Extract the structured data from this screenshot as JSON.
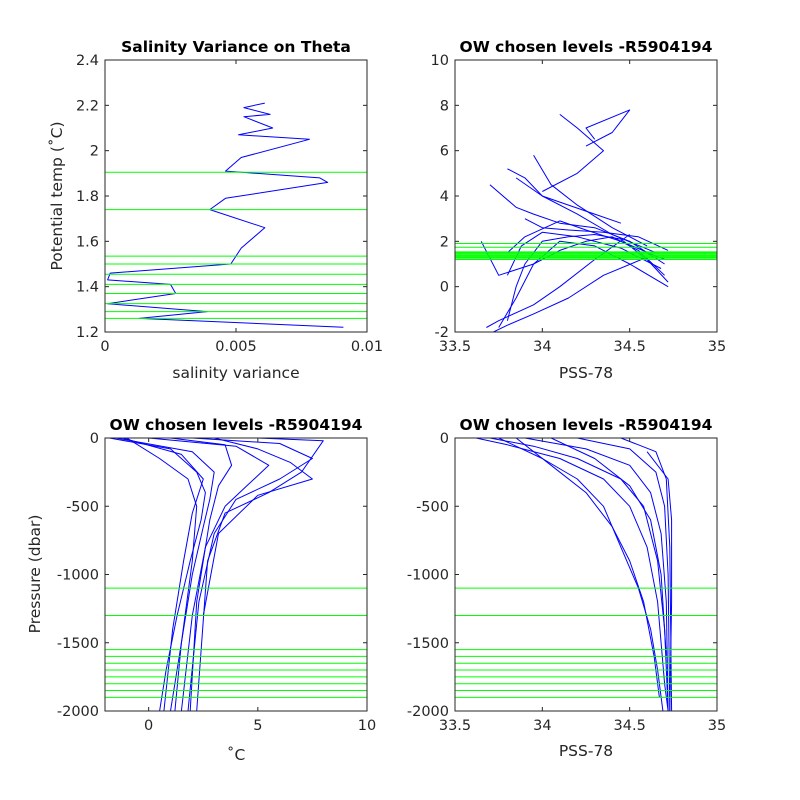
{
  "colors": {
    "profile": "#0000ff",
    "level": "#00ff00",
    "axis": "#262626"
  },
  "chart_data": [
    {
      "type": "line",
      "title": "Salinity Variance on Theta",
      "xlabel": "salinity variance",
      "ylabel": "Potential temp (˚C)",
      "xlim": [
        0,
        0.01
      ],
      "ylim": [
        1.2,
        2.4
      ],
      "xticks": [
        0,
        0.005,
        0.01
      ],
      "xtick_labels": [
        "0",
        "0.005",
        "0.01"
      ],
      "yticks": [
        1.2,
        1.4,
        1.6,
        1.8,
        2,
        2.2,
        2.4
      ],
      "ytick_labels": [
        "1.2",
        "1.4",
        "1.6",
        "1.8",
        "2",
        "2.2",
        "2.4"
      ],
      "series": [
        {
          "x": [
            0.0091,
            0.0013,
            0.0039,
            0.0001,
            0.0027,
            0.0025,
            0.0001,
            0.0002,
            0.0048,
            0.0052,
            0.0061,
            0.004,
            0.0046,
            0.0085,
            0.0082,
            0.0046,
            0.0052,
            0.0078,
            0.0051,
            0.0064,
            0.0053,
            0.0063,
            0.0053,
            0.0061
          ],
          "y": [
            1.221,
            1.26,
            1.29,
            1.325,
            1.37,
            1.41,
            1.43,
            1.46,
            1.5,
            1.57,
            1.66,
            1.74,
            1.79,
            1.86,
            1.88,
            1.91,
            1.97,
            2.05,
            2.07,
            2.1,
            2.15,
            2.16,
            2.19,
            2.21
          ]
        }
      ],
      "hlines": [
        1.26,
        1.29,
        1.325,
        1.37,
        1.41,
        1.455,
        1.5,
        1.535,
        1.74,
        1.905
      ]
    },
    {
      "type": "line",
      "title": "OW chosen levels -R5904194",
      "xlabel": "PSS-78",
      "ylabel": "",
      "xlim": [
        33.5,
        35
      ],
      "ylim": [
        -2,
        10
      ],
      "xticks": [
        33.5,
        34,
        34.5,
        35
      ],
      "xtick_labels": [
        "33.5",
        "34",
        "34.5",
        "35"
      ],
      "yticks": [
        -2,
        0,
        2,
        4,
        6,
        8,
        10
      ],
      "ytick_labels": [
        "-2",
        "0",
        "2",
        "4",
        "6",
        "8",
        "10"
      ],
      "series": [
        {
          "x": [
            34.72,
            34.6,
            34.45,
            34.3,
            34.15,
            34.0,
            33.9,
            33.85,
            33.8
          ],
          "y": [
            0.2,
            1.2,
            2.1,
            2.3,
            2.2,
            2.0,
            1.0,
            0.0,
            -1.5
          ]
        },
        {
          "x": [
            34.7,
            34.55,
            34.4,
            34.25,
            34.1,
            33.95,
            33.85,
            33.75
          ],
          "y": [
            0.5,
            1.6,
            2.2,
            2.0,
            1.6,
            1.0,
            -0.5,
            -1.8
          ]
        },
        {
          "x": [
            34.7,
            34.5,
            34.3,
            34.1,
            33.95,
            33.85,
            33.7
          ],
          "y": [
            1.0,
            2.0,
            2.6,
            2.8,
            3.2,
            3.5,
            4.5
          ]
        },
        {
          "x": [
            34.65,
            34.4,
            34.2,
            34.0,
            33.9,
            33.8
          ],
          "y": [
            1.5,
            2.3,
            3.2,
            4.0,
            4.8,
            5.2
          ]
        },
        {
          "x": [
            34.6,
            34.4,
            34.2,
            34.05,
            33.95
          ],
          "y": [
            1.8,
            2.6,
            3.6,
            4.5,
            5.8
          ]
        },
        {
          "x": [
            34.7,
            34.45,
            34.25,
            34.1,
            33.9,
            33.8
          ],
          "y": [
            1.2,
            2.0,
            2.5,
            2.9,
            2.2,
            1.5
          ]
        },
        {
          "x": [
            34.72,
            34.5,
            34.3,
            34.1,
            33.95,
            33.75,
            33.65
          ],
          "y": [
            0.0,
            1.0,
            1.8,
            2.0,
            1.0,
            0.5,
            2.0
          ]
        },
        {
          "x": [
            34.6,
            34.35,
            34.15,
            33.95,
            33.8,
            33.72
          ],
          "y": [
            1.3,
            0.5,
            -0.5,
            -1.2,
            -1.7,
            -2.0
          ]
        },
        {
          "x": [
            34.5,
            34.3,
            34.1,
            33.95,
            33.75,
            33.68
          ],
          "y": [
            2.3,
            1.2,
            0.0,
            -0.8,
            -1.5,
            -1.8
          ]
        },
        {
          "x": [
            34.45,
            34.3,
            34.15,
            34.0,
            33.85
          ],
          "y": [
            2.8,
            3.2,
            3.6,
            4.0,
            4.8
          ]
        },
        {
          "x": [
            34.0,
            34.2,
            34.35,
            34.2,
            34.1
          ],
          "y": [
            4.2,
            5.0,
            6.0,
            7.0,
            7.6
          ]
        },
        {
          "x": [
            34.3,
            34.25,
            34.5,
            34.4,
            34.25
          ],
          "y": [
            6.5,
            7.0,
            7.8,
            6.8,
            6.2
          ]
        },
        {
          "x": [
            34.72,
            34.55,
            34.35,
            34.15,
            34.0,
            33.9
          ],
          "y": [
            1.6,
            2.2,
            2.4,
            2.5,
            2.6,
            3.0
          ]
        },
        {
          "x": [
            34.68,
            34.45,
            34.2,
            34.0,
            33.88,
            33.8
          ],
          "y": [
            0.8,
            1.7,
            2.2,
            2.4,
            1.8,
            0.5
          ]
        }
      ],
      "hlines": [
        1.2,
        1.26,
        1.29,
        1.325,
        1.37,
        1.41,
        1.455,
        1.5,
        1.535,
        1.74,
        1.905
      ]
    },
    {
      "type": "line",
      "title": "OW chosen levels -R5904194",
      "xlabel": "˚C",
      "ylabel": "Pressure (dbar)",
      "xlim": [
        -2,
        10
      ],
      "ylim": [
        -2000,
        0
      ],
      "xticks": [
        0,
        5,
        10
      ],
      "xtick_labels": [
        "0",
        "5",
        "10"
      ],
      "yticks": [
        -2000,
        -1500,
        -1000,
        -500,
        0
      ],
      "ytick_labels": [
        "-2000",
        "-1500",
        "-1000",
        "-500",
        "0"
      ],
      "series": [
        {
          "x": [
            -1.8,
            1.0,
            2.2,
            2.6,
            2.4,
            1.9,
            1.3,
            0.8,
            0.5
          ],
          "y": [
            0,
            -80,
            -250,
            -400,
            -600,
            -900,
            -1300,
            -1700,
            -2000
          ]
        },
        {
          "x": [
            -1.5,
            2.0,
            3.0,
            2.8,
            2.5,
            2.0,
            1.5,
            1.0
          ],
          "y": [
            0,
            -100,
            -250,
            -450,
            -650,
            -1000,
            -1500,
            -2000
          ]
        },
        {
          "x": [
            0.0,
            4.0,
            5.5,
            4.5,
            3.5,
            2.6,
            2.0,
            1.5
          ],
          "y": [
            0,
            -60,
            -200,
            -350,
            -500,
            -800,
            -1300,
            -2000
          ]
        },
        {
          "x": [
            2.0,
            6.0,
            7.5,
            6.0,
            4.0,
            3.0,
            2.3,
            1.8
          ],
          "y": [
            0,
            -40,
            -150,
            -300,
            -450,
            -700,
            -1200,
            -2000
          ]
        },
        {
          "x": [
            5.0,
            8.0,
            7.0,
            5.5,
            3.5,
            2.7,
            2.2
          ],
          "y": [
            0,
            -20,
            -250,
            -400,
            -550,
            -900,
            -2000
          ]
        },
        {
          "x": [
            -1.0,
            0.5,
            1.8,
            2.2,
            2.0,
            1.5,
            1.2
          ],
          "y": [
            0,
            -150,
            -300,
            -500,
            -900,
            -1500,
            -2000
          ]
        },
        {
          "x": [
            1.0,
            3.5,
            3.8,
            3.2,
            2.8,
            2.2,
            1.9
          ],
          "y": [
            0,
            -50,
            -200,
            -350,
            -600,
            -1200,
            -2000
          ]
        },
        {
          "x": [
            3.0,
            5.0,
            6.5,
            7.5,
            5.0,
            3.2,
            2.5
          ],
          "y": [
            0,
            -80,
            -180,
            -300,
            -420,
            -700,
            -1300
          ]
        },
        {
          "x": [
            -1.2,
            1.5,
            2.5,
            2.0,
            1.6,
            1.1,
            0.7
          ],
          "y": [
            0,
            -120,
            -300,
            -550,
            -900,
            -1400,
            -2000
          ]
        }
      ],
      "hlines": [
        -1100,
        -1300,
        -1550,
        -1600,
        -1650,
        -1700,
        -1750,
        -1800,
        -1850,
        -1900
      ]
    },
    {
      "type": "line",
      "title": "OW chosen levels -R5904194",
      "xlabel": "PSS-78",
      "ylabel": "",
      "xlim": [
        33.5,
        35
      ],
      "ylim": [
        -2000,
        0
      ],
      "xticks": [
        33.5,
        34,
        34.5,
        35
      ],
      "xtick_labels": [
        "33.5",
        "34",
        "34.5",
        "35"
      ],
      "yticks": [
        -2000,
        -1500,
        -1000,
        -500,
        0
      ],
      "ytick_labels": [
        "-2000",
        "-1500",
        "-1000",
        "-500",
        "0"
      ],
      "series": [
        {
          "x": [
            33.62,
            33.8,
            34.1,
            34.35,
            34.5,
            34.6,
            34.66,
            34.68,
            34.7,
            34.72
          ],
          "y": [
            0,
            -50,
            -150,
            -300,
            -500,
            -800,
            -1200,
            -1500,
            -1800,
            -2000
          ]
        },
        {
          "x": [
            33.7,
            33.95,
            34.2,
            34.45,
            34.58,
            34.66,
            34.7,
            34.72
          ],
          "y": [
            0,
            -60,
            -150,
            -300,
            -500,
            -900,
            -1400,
            -2000
          ]
        },
        {
          "x": [
            33.9,
            34.25,
            34.5,
            34.62,
            34.68,
            34.71,
            34.72
          ],
          "y": [
            0,
            -80,
            -200,
            -400,
            -700,
            -1200,
            -2000
          ]
        },
        {
          "x": [
            34.2,
            34.5,
            34.65,
            34.7,
            34.72,
            34.73
          ],
          "y": [
            0,
            -80,
            -250,
            -500,
            -1000,
            -2000
          ]
        },
        {
          "x": [
            34.45,
            34.65,
            34.71,
            34.73,
            34.74
          ],
          "y": [
            0,
            -100,
            -300,
            -800,
            -2000
          ]
        },
        {
          "x": [
            33.75,
            34.0,
            34.2,
            34.35,
            34.45,
            34.55,
            34.62,
            34.66,
            34.69
          ],
          "y": [
            0,
            -150,
            -300,
            -500,
            -800,
            -1100,
            -1400,
            -1700,
            -2000
          ]
        },
        {
          "x": [
            33.85,
            34.05,
            34.25,
            34.4,
            34.5,
            34.58,
            34.64,
            34.67
          ],
          "y": [
            0,
            -200,
            -400,
            -650,
            -900,
            -1200,
            -1600,
            -1900
          ]
        },
        {
          "x": [
            34.05,
            34.3,
            34.5,
            34.62,
            34.68,
            34.71
          ],
          "y": [
            0,
            -150,
            -350,
            -600,
            -1000,
            -1600
          ]
        },
        {
          "x": [
            34.6,
            34.72,
            34.74,
            34.74,
            34.73
          ],
          "y": [
            -100,
            -300,
            -600,
            -1200,
            -2000
          ]
        }
      ],
      "hlines": [
        -1100,
        -1300,
        -1550,
        -1600,
        -1650,
        -1700,
        -1750,
        -1800,
        -1850,
        -1900
      ]
    }
  ]
}
